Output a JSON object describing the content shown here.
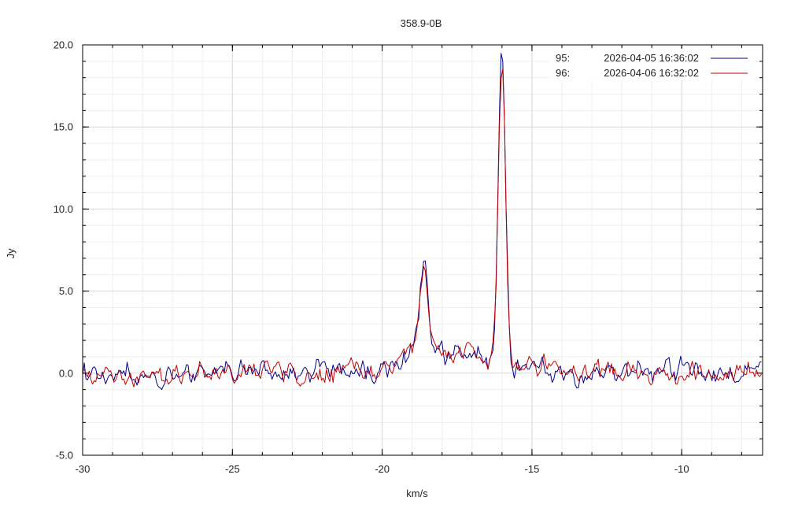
{
  "chart_data": {
    "type": "line",
    "title": "358.9-0B",
    "xlabel": "km/s",
    "ylabel": "Jy",
    "xlim": [
      -30,
      -7.3
    ],
    "ylim": [
      -5,
      20
    ],
    "x_ticks": [
      -30,
      -25,
      -20,
      -15,
      -10
    ],
    "x_tick_labels": [
      "-30",
      "-25",
      "-20",
      "-15",
      "-10"
    ],
    "y_ticks": [
      -5,
      0,
      5,
      10,
      15,
      20
    ],
    "y_tick_labels": [
      "-5.0",
      "0.0",
      "5.0",
      "10.0",
      "15.0",
      "20.0"
    ],
    "grid": true,
    "legend_position": "top-right",
    "colors": {
      "series_95": "#00008b",
      "series_96": "#c00000",
      "grid_major": "#d8d8d8",
      "grid_minor": "#efefef",
      "axis": "#000000"
    },
    "series": [
      {
        "name": "2026-04-05 16:36:02",
        "label_id": "95:",
        "color": "#00008b",
        "noise_seed": 95,
        "components": [
          {
            "center": -16.0,
            "amplitude": 19.0,
            "sigma": 0.12
          },
          {
            "center": -18.6,
            "amplitude": 4.8,
            "sigma": 0.13
          },
          {
            "center": -18.75,
            "amplitude": 1.6,
            "sigma": 0.5
          },
          {
            "center": -17.6,
            "amplitude": 0.9,
            "sigma": 0.7
          },
          {
            "center": -16.9,
            "amplitude": 0.6,
            "sigma": 0.4
          },
          {
            "center": -15.2,
            "amplitude": 0.5,
            "sigma": 0.6
          }
        ],
        "noise_rms": 0.42
      },
      {
        "name": "2026-04-06 16:32:02",
        "label_id": "96:",
        "color": "#c00000",
        "noise_seed": 96,
        "components": [
          {
            "center": -16.0,
            "amplitude": 18.7,
            "sigma": 0.12
          },
          {
            "center": -18.6,
            "amplitude": 4.9,
            "sigma": 0.13
          },
          {
            "center": -18.75,
            "amplitude": 1.6,
            "sigma": 0.5
          },
          {
            "center": -17.6,
            "amplitude": 0.9,
            "sigma": 0.7
          },
          {
            "center": -16.9,
            "amplitude": 0.6,
            "sigma": 0.4
          },
          {
            "center": -15.2,
            "amplitude": 0.5,
            "sigma": 0.6
          }
        ],
        "noise_rms": 0.42
      }
    ]
  }
}
